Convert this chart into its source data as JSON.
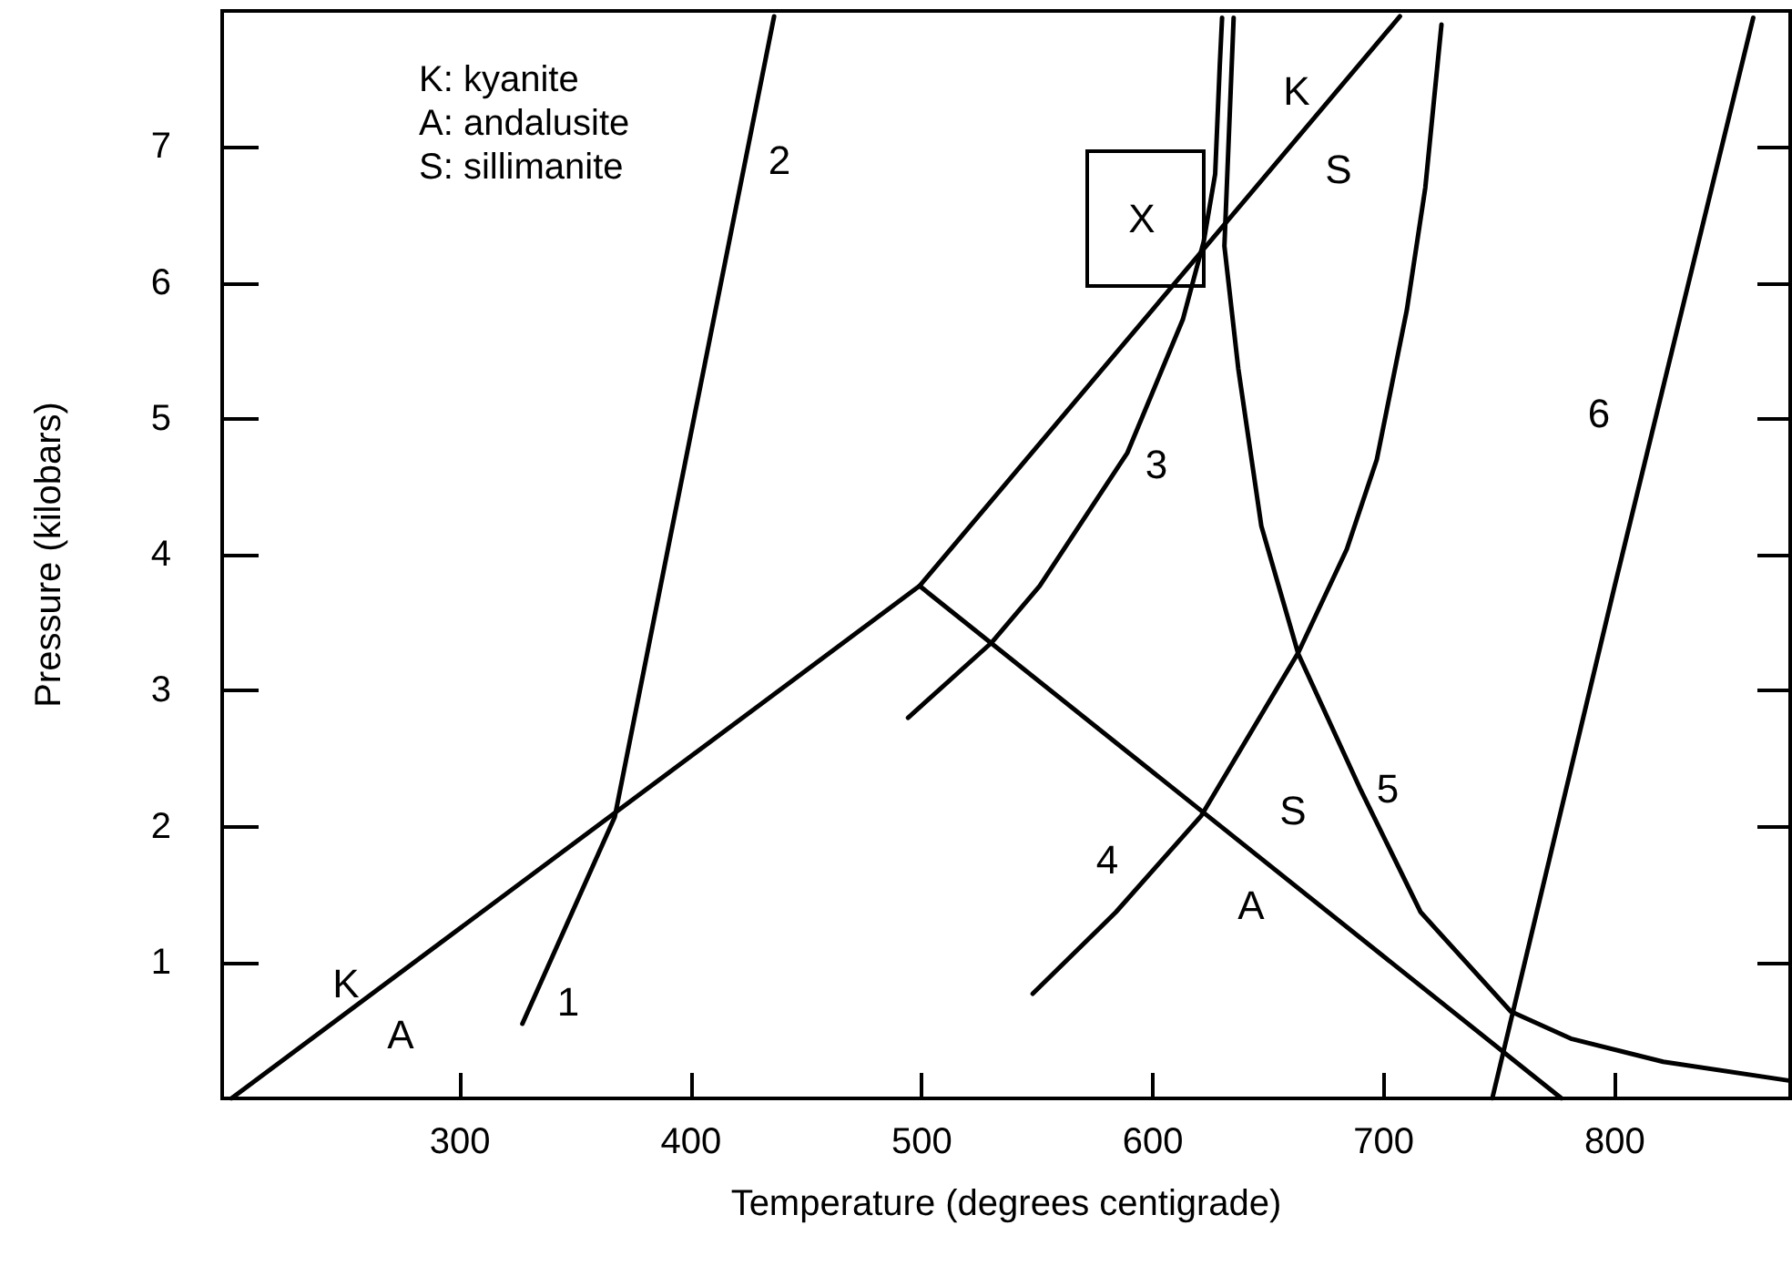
{
  "chart_data": {
    "type": "line",
    "xlabel": "Temperature (degrees centigrade)",
    "ylabel": "Pressure (kilobars)",
    "xlim": [
      197,
      876
    ],
    "ylim": [
      0,
      8
    ],
    "xticks": [
      300,
      400,
      500,
      600,
      700,
      800
    ],
    "yticks": [
      1,
      2,
      3,
      4,
      5,
      6,
      7
    ],
    "grid": false,
    "marker": "none",
    "line_style": "solid",
    "series": [
      {
        "color": "#000000",
        "x": [
          201,
          499,
          707
        ],
        "values": [
          0,
          3.77,
          7.96
        ]
      },
      {
        "color": "#000000",
        "x": [
          499,
          777
        ],
        "values": [
          3.77,
          0
        ]
      },
      {
        "color": "#000000",
        "x": [
          327,
          367,
          390,
          436
        ],
        "values": [
          0.55,
          2.07,
          4.04,
          7.96
        ]
      },
      {
        "color": "#000000",
        "x": [
          494,
          530,
          551,
          589,
          613,
          622,
          627,
          629,
          630
        ],
        "values": [
          2.8,
          3.35,
          3.77,
          4.75,
          5.73,
          6.3,
          6.8,
          7.6,
          7.95
        ]
      },
      {
        "color": "#000000",
        "x": [
          548,
          584,
          621,
          663,
          684,
          697,
          710,
          718,
          725
        ],
        "values": [
          0.77,
          1.37,
          2.08,
          3.28,
          4.04,
          4.7,
          5.8,
          6.7,
          7.9
        ]
      },
      {
        "color": "#000000",
        "x": [
          635,
          631,
          637,
          647,
          663,
          690,
          716,
          755,
          781,
          821,
          876
        ],
        "values": [
          7.95,
          6.27,
          5.37,
          4.21,
          3.27,
          2.27,
          1.37,
          0.64,
          0.44,
          0.27,
          0.13
        ]
      },
      {
        "color": "#000000",
        "x": [
          747,
          800,
          860
        ],
        "values": [
          0,
          3.77,
          7.95
        ]
      }
    ],
    "annotations": [
      "K: kyanite",
      "A: andalusite",
      "S: sillimanite",
      "K",
      "A",
      "1",
      "2",
      "3",
      "4",
      "5",
      "6",
      "K",
      "S",
      "S",
      "A",
      "X"
    ]
  }
}
